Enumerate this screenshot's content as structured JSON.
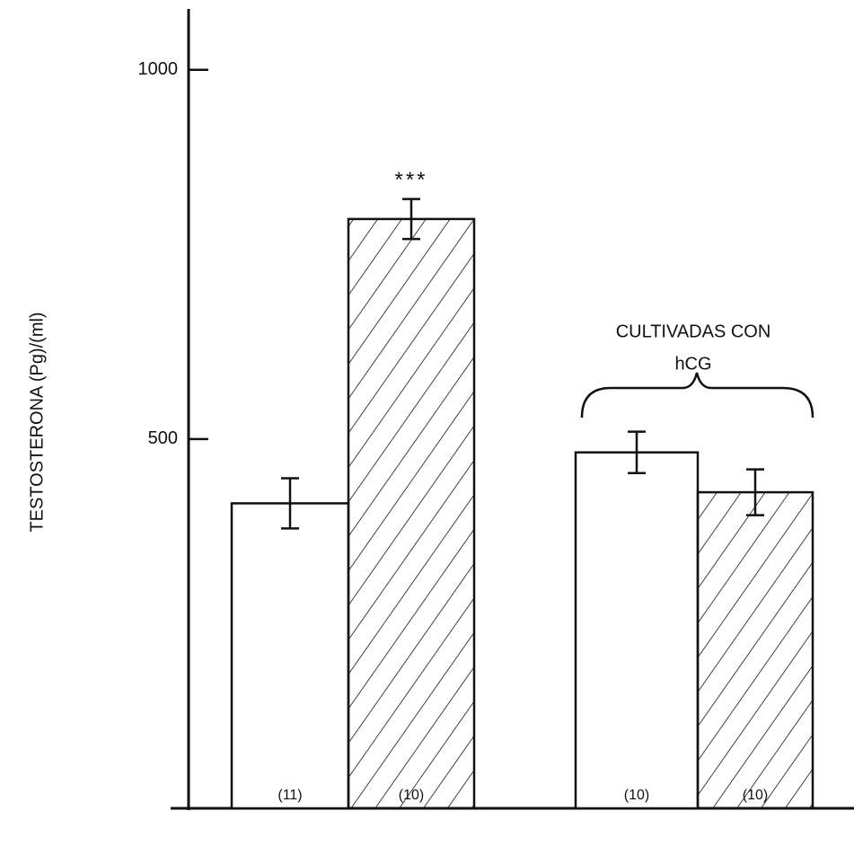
{
  "chart_data": {
    "type": "bar",
    "y_label": "TESTOSTERONA (Pg)/(ml)",
    "categories": [
      null,
      null,
      null,
      null
    ],
    "values": [
      413,
      798,
      482,
      428
    ],
    "errors": [
      34,
      27,
      28,
      31
    ],
    "patterns": [
      "none",
      "hatch",
      "none",
      "hatch"
    ],
    "n_labels": [
      "(11)",
      "(10)",
      "(10)",
      "(10)"
    ],
    "significance": "***",
    "group_label": [
      "CULTIVADAS CON",
      "hCG"
    ],
    "color": "#111111",
    "ylim": [
      0,
      1080
    ],
    "yticks": [
      500,
      1000
    ],
    "grid": false
  }
}
